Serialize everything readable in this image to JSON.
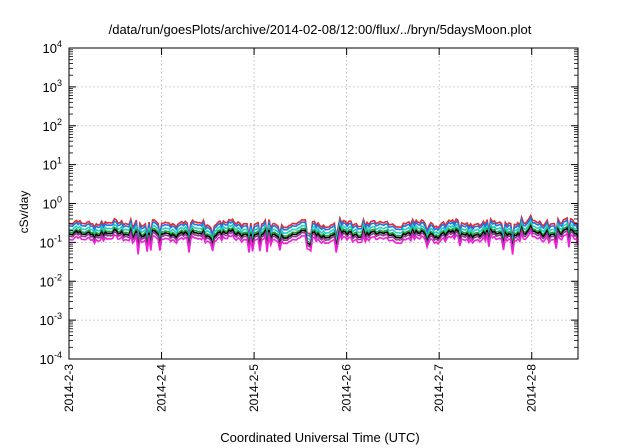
{
  "chart_data": {
    "type": "line",
    "title": "/data/run/goesPlots/archive/2014-02-08/12:00/flux/../bryn/5daysMoon.plot",
    "xlabel": "Coordinated Universal Time (UTC)",
    "ylabel": "cSv/day",
    "y_scale": "log",
    "ylim": [
      0.0001,
      10000
    ],
    "xlim": [
      "2014-02-03 00:00",
      "2014-02-08 12:00"
    ],
    "y_ticks": [
      {
        "value": 0.0001,
        "base": "10",
        "exp": "-4"
      },
      {
        "value": 0.001,
        "base": "10",
        "exp": "-3"
      },
      {
        "value": 0.01,
        "base": "10",
        "exp": "-2"
      },
      {
        "value": 0.1,
        "base": "10",
        "exp": "-1"
      },
      {
        "value": 1,
        "base": "10",
        "exp": "0"
      },
      {
        "value": 10,
        "base": "10",
        "exp": "1"
      },
      {
        "value": 100,
        "base": "10",
        "exp": "2"
      },
      {
        "value": 1000,
        "base": "10",
        "exp": "3"
      },
      {
        "value": 10000,
        "base": "10",
        "exp": "4"
      }
    ],
    "x_ticks": [
      "2014-2-3",
      "2014-2-4",
      "2014-2-5",
      "2014-2-6",
      "2014-2-7",
      "2014-2-8"
    ],
    "grid": true,
    "legend": "none",
    "series": [
      {
        "color": "#e8262b",
        "baseline": 0.31
      },
      {
        "color": "#1c75e8",
        "baseline": 0.27
      },
      {
        "color": "#20d0c0",
        "baseline": 0.22
      },
      {
        "color": "#1e9e3a",
        "baseline": 0.185
      },
      {
        "color": "#000000",
        "baseline": 0.165
      },
      {
        "color": "#8a3a8a",
        "baseline": 0.145
      },
      {
        "color": "#f020d8",
        "baseline": 0.12
      }
    ]
  }
}
